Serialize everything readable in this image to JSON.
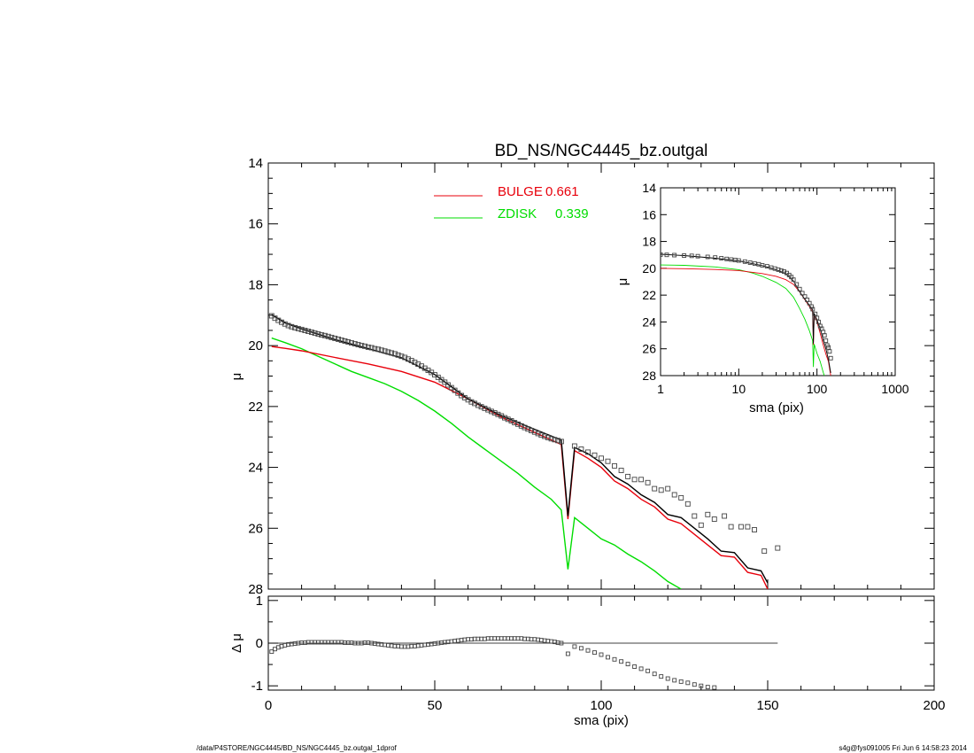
{
  "chart_data": [
    {
      "panel": "main",
      "type": "scatter",
      "title": "BD_NS/NGC4445_bz.outgal",
      "xlabel": "",
      "ylabel": "μ",
      "xlim": [
        0,
        200
      ],
      "ylim": [
        28,
        14
      ],
      "y_inverted": true,
      "xticks": [
        "0",
        "50",
        "100",
        "150",
        "200"
      ],
      "yticks": [
        "14",
        "16",
        "18",
        "20",
        "22",
        "24",
        "26",
        "28"
      ],
      "grid": false,
      "legend_position": "top-center",
      "legend": [
        {
          "label": "BULGE",
          "value": "0.661",
          "color": "#e8000b"
        },
        {
          "label": "ZDISK",
          "value": "0.339",
          "color": "#00dd00"
        }
      ],
      "series": [
        {
          "name": "data",
          "kind": "points",
          "color": "#444444",
          "x": [
            1,
            2,
            3,
            4,
            5,
            6,
            7,
            8,
            9,
            10,
            11,
            12,
            13,
            14,
            15,
            16,
            17,
            18,
            19,
            20,
            21,
            22,
            23,
            24,
            25,
            26,
            27,
            28,
            29,
            30,
            31,
            32,
            33,
            34,
            35,
            36,
            37,
            38,
            39,
            40,
            41,
            42,
            43,
            44,
            45,
            46,
            47,
            48,
            49,
            50,
            51,
            52,
            53,
            54,
            55,
            56,
            57,
            58,
            59,
            60,
            61,
            62,
            63,
            64,
            65,
            66,
            67,
            68,
            69,
            70,
            71,
            72,
            73,
            74,
            75,
            76,
            77,
            78,
            79,
            80,
            81,
            82,
            83,
            84,
            85,
            86,
            87,
            88,
            92,
            94,
            96,
            98,
            100,
            102,
            104,
            106,
            108,
            110,
            112,
            114,
            116,
            118,
            120,
            122,
            124,
            126,
            128,
            130,
            132,
            134,
            137,
            139,
            142,
            144,
            146,
            149,
            153
          ],
          "y": [
            19.02,
            19.1,
            19.17,
            19.23,
            19.29,
            19.34,
            19.38,
            19.41,
            19.44,
            19.47,
            19.5,
            19.53,
            19.56,
            19.59,
            19.62,
            19.65,
            19.67,
            19.7,
            19.73,
            19.76,
            19.79,
            19.82,
            19.85,
            19.88,
            19.91,
            19.94,
            19.97,
            20.0,
            20.02,
            20.05,
            20.07,
            20.1,
            20.12,
            20.15,
            20.18,
            20.21,
            20.24,
            20.27,
            20.31,
            20.35,
            20.39,
            20.44,
            20.49,
            20.55,
            20.61,
            20.67,
            20.74,
            20.81,
            20.88,
            20.96,
            21.04,
            21.12,
            21.2,
            21.29,
            21.38,
            21.47,
            21.56,
            21.64,
            21.71,
            21.78,
            21.85,
            21.9,
            21.96,
            22.01,
            22.06,
            22.11,
            22.16,
            22.21,
            22.26,
            22.31,
            22.37,
            22.42,
            22.47,
            22.53,
            22.58,
            22.64,
            22.69,
            22.74,
            22.79,
            22.84,
            22.89,
            22.94,
            22.98,
            23.02,
            23.06,
            23.09,
            23.12,
            23.15,
            23.3,
            23.4,
            23.5,
            23.6,
            23.7,
            23.8,
            23.95,
            24.1,
            24.3,
            24.4,
            24.4,
            24.5,
            24.7,
            24.75,
            24.7,
            24.9,
            25.0,
            25.2,
            25.6,
            25.9,
            25.55,
            25.7,
            25.6,
            25.95,
            25.95,
            25.95,
            26.05,
            26.75,
            26.65
          ]
        },
        {
          "name": "model",
          "kind": "line",
          "color": "#000000",
          "x": [
            1,
            5,
            10,
            20,
            30,
            40,
            50,
            60,
            70,
            80,
            88,
            90,
            92,
            96,
            100,
            104,
            108,
            112,
            116,
            120,
            124,
            128,
            132,
            136,
            140,
            144,
            148,
            150
          ],
          "y": [
            18.98,
            19.25,
            19.45,
            19.8,
            20.1,
            20.4,
            20.95,
            21.75,
            22.3,
            22.75,
            23.1,
            25.6,
            23.35,
            23.55,
            23.85,
            24.3,
            24.55,
            24.9,
            25.15,
            25.55,
            25.65,
            26.0,
            26.35,
            26.75,
            26.8,
            27.3,
            27.4,
            27.8
          ]
        },
        {
          "name": "BULGE",
          "kind": "line",
          "color": "#e8000b",
          "x": [
            1,
            5,
            10,
            20,
            30,
            40,
            50,
            60,
            70,
            80,
            88,
            90,
            92,
            96,
            100,
            104,
            108,
            112,
            116,
            120,
            124,
            128,
            132,
            136,
            140,
            144,
            148,
            150
          ],
          "y": [
            20.03,
            20.09,
            20.17,
            20.39,
            20.6,
            20.85,
            21.2,
            21.75,
            22.35,
            22.85,
            23.25,
            25.7,
            23.45,
            23.7,
            24.0,
            24.45,
            24.7,
            25.05,
            25.3,
            25.7,
            25.85,
            26.2,
            26.55,
            26.9,
            26.95,
            27.45,
            27.55,
            28.0
          ]
        },
        {
          "name": "ZDISK",
          "kind": "line",
          "color": "#00dd00",
          "x": [
            1,
            5,
            10,
            15,
            20,
            25,
            30,
            35,
            40,
            45,
            50,
            55,
            60,
            65,
            70,
            75,
            80,
            85,
            88,
            90,
            92,
            96,
            100,
            104,
            108,
            112,
            116,
            120,
            124
          ],
          "y": [
            19.75,
            19.9,
            20.1,
            20.35,
            20.6,
            20.85,
            21.05,
            21.25,
            21.5,
            21.8,
            22.15,
            22.55,
            23.0,
            23.4,
            23.8,
            24.2,
            24.65,
            25.05,
            25.4,
            27.35,
            25.65,
            26.0,
            26.35,
            26.55,
            26.85,
            27.1,
            27.4,
            27.75,
            28.0
          ]
        }
      ]
    },
    {
      "panel": "residual",
      "type": "scatter",
      "xlabel": "sma (pix)",
      "ylabel": "Δ μ",
      "xlim": [
        0,
        200
      ],
      "ylim": [
        -1.1,
        1.1
      ],
      "xticks": [
        "0",
        "50",
        "100",
        "150",
        "200"
      ],
      "yticks": [
        "1",
        "0",
        "-1"
      ],
      "zero_line": true,
      "series": [
        {
          "name": "residuals",
          "kind": "points",
          "color": "#444444",
          "x": [
            1,
            2,
            3,
            4,
            5,
            6,
            7,
            8,
            9,
            10,
            11,
            12,
            13,
            14,
            15,
            16,
            17,
            18,
            19,
            20,
            21,
            22,
            23,
            24,
            25,
            26,
            27,
            28,
            29,
            30,
            31,
            32,
            33,
            34,
            35,
            36,
            37,
            38,
            39,
            40,
            41,
            42,
            43,
            44,
            45,
            46,
            47,
            48,
            49,
            50,
            51,
            52,
            53,
            54,
            55,
            56,
            57,
            58,
            59,
            60,
            61,
            62,
            63,
            64,
            65,
            66,
            67,
            68,
            69,
            70,
            71,
            72,
            73,
            74,
            75,
            76,
            77,
            78,
            79,
            80,
            81,
            82,
            83,
            84,
            85,
            86,
            87,
            88,
            90,
            92,
            94,
            96,
            98,
            100,
            102,
            104,
            106,
            108,
            110,
            112,
            114,
            116,
            118,
            120,
            122,
            124,
            126,
            128,
            130,
            132,
            134
          ],
          "y": [
            -0.2,
            -0.14,
            -0.1,
            -0.07,
            -0.05,
            -0.03,
            -0.02,
            -0.01,
            0.0,
            0.01,
            0.01,
            0.02,
            0.02,
            0.02,
            0.02,
            0.02,
            0.02,
            0.02,
            0.02,
            0.02,
            0.02,
            0.02,
            0.01,
            0.01,
            0.01,
            0.0,
            0.0,
            0.0,
            0.01,
            0.01,
            0.0,
            -0.01,
            -0.02,
            -0.03,
            -0.04,
            -0.05,
            -0.06,
            -0.07,
            -0.07,
            -0.08,
            -0.08,
            -0.08,
            -0.07,
            -0.07,
            -0.06,
            -0.05,
            -0.04,
            -0.03,
            -0.02,
            -0.01,
            0.0,
            0.01,
            0.02,
            0.03,
            0.04,
            0.05,
            0.06,
            0.07,
            0.08,
            0.09,
            0.09,
            0.1,
            0.1,
            0.1,
            0.1,
            0.11,
            0.11,
            0.11,
            0.11,
            0.11,
            0.11,
            0.11,
            0.11,
            0.11,
            0.11,
            0.11,
            0.1,
            0.1,
            0.09,
            0.09,
            0.08,
            0.07,
            0.06,
            0.05,
            0.04,
            0.03,
            0.01,
            0.0,
            -0.25,
            -0.08,
            -0.12,
            -0.17,
            -0.22,
            -0.27,
            -0.33,
            -0.38,
            -0.43,
            -0.49,
            -0.55,
            -0.6,
            -0.65,
            -0.72,
            -0.78,
            -0.83,
            -0.87,
            -0.9,
            -0.93,
            -0.97,
            -1.0,
            -1.03,
            -1.04
          ]
        }
      ]
    },
    {
      "panel": "inset",
      "type": "scatter",
      "xlabel": "sma (pix)",
      "ylabel": "μ",
      "x_scale": "log",
      "xlim": [
        1,
        1000
      ],
      "ylim": [
        28,
        14
      ],
      "y_inverted": true,
      "xticks": [
        "1",
        "10",
        "100",
        "1000"
      ],
      "yticks": [
        "14",
        "16",
        "18",
        "20",
        "22",
        "24",
        "26",
        "28"
      ],
      "series": [
        {
          "name": "data",
          "kind": "points",
          "color": "#444444",
          "x": [
            1,
            1.2,
            1.5,
            2,
            2.5,
            3,
            4,
            5,
            6,
            7,
            8,
            9,
            10,
            12,
            14,
            16,
            18,
            20,
            23,
            26,
            29,
            32,
            35,
            38,
            41,
            44,
            47,
            50,
            55,
            60,
            65,
            70,
            75,
            80,
            85,
            88,
            95,
            100,
            105,
            110,
            115,
            120,
            125,
            130,
            135,
            140,
            145,
            150
          ],
          "y": [
            18.98,
            19.0,
            19.02,
            19.05,
            19.07,
            19.1,
            19.15,
            19.2,
            19.25,
            19.3,
            19.35,
            19.38,
            19.42,
            19.5,
            19.58,
            19.65,
            19.7,
            19.78,
            19.85,
            19.95,
            20.02,
            20.1,
            20.18,
            20.25,
            20.35,
            20.5,
            20.65,
            20.85,
            21.2,
            21.55,
            21.85,
            22.1,
            22.35,
            22.6,
            22.85,
            23.05,
            23.4,
            23.7,
            24.0,
            24.3,
            24.5,
            24.75,
            25.0,
            25.4,
            25.75,
            25.9,
            26.2,
            26.7
          ]
        },
        {
          "name": "model",
          "kind": "line",
          "color": "#000000",
          "x": [
            1,
            2,
            5,
            10,
            20,
            30,
            40,
            50,
            60,
            70,
            80,
            88,
            90,
            92,
            100,
            110,
            120,
            130,
            140,
            150
          ],
          "y": [
            18.95,
            19.05,
            19.25,
            19.45,
            19.8,
            20.1,
            20.4,
            20.95,
            21.75,
            22.3,
            22.75,
            23.1,
            25.6,
            23.35,
            23.85,
            24.5,
            25.35,
            26.0,
            26.8,
            27.8
          ]
        },
        {
          "name": "BULGE",
          "kind": "line",
          "color": "#e8000b",
          "x": [
            1,
            2,
            5,
            10,
            20,
            30,
            40,
            50,
            60,
            70,
            80,
            88,
            90,
            92,
            100,
            110,
            120,
            130,
            140,
            150
          ],
          "y": [
            20.0,
            20.03,
            20.09,
            20.17,
            20.39,
            20.6,
            20.85,
            21.2,
            21.75,
            22.35,
            22.85,
            23.25,
            25.7,
            23.45,
            24.0,
            24.85,
            25.7,
            26.4,
            26.95,
            28.0
          ]
        },
        {
          "name": "ZDISK",
          "kind": "line",
          "color": "#00dd00",
          "x": [
            1,
            2,
            5,
            10,
            15,
            20,
            30,
            40,
            50,
            60,
            70,
            80,
            88,
            90,
            92,
            100,
            110,
            120,
            124
          ],
          "y": [
            19.75,
            19.78,
            19.9,
            20.1,
            20.35,
            20.6,
            21.05,
            21.5,
            22.15,
            23.0,
            23.8,
            24.65,
            25.4,
            27.35,
            25.65,
            26.35,
            26.95,
            27.75,
            28.0
          ]
        }
      ]
    }
  ],
  "footer": {
    "left": "/data/P4STORE/NGC4445/BD_NS/NGC4445_bz.outgal_1dprof",
    "right": "s4g@fys091005  Fri Jun  6 14:58:23 2014"
  }
}
